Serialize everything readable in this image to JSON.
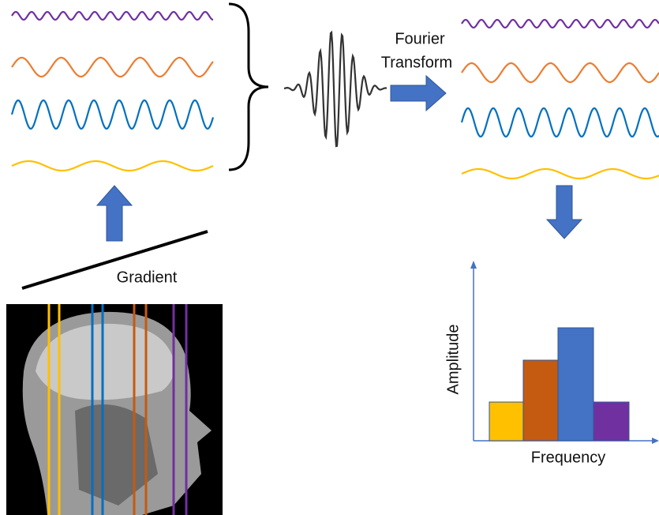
{
  "arrow_label": [
    "Fourier",
    "Transform"
  ],
  "gradient_label": "Gradient",
  "spectrum": {
    "y_axis_label": "Amplitude",
    "x_axis_label": "Frequency"
  }
}
